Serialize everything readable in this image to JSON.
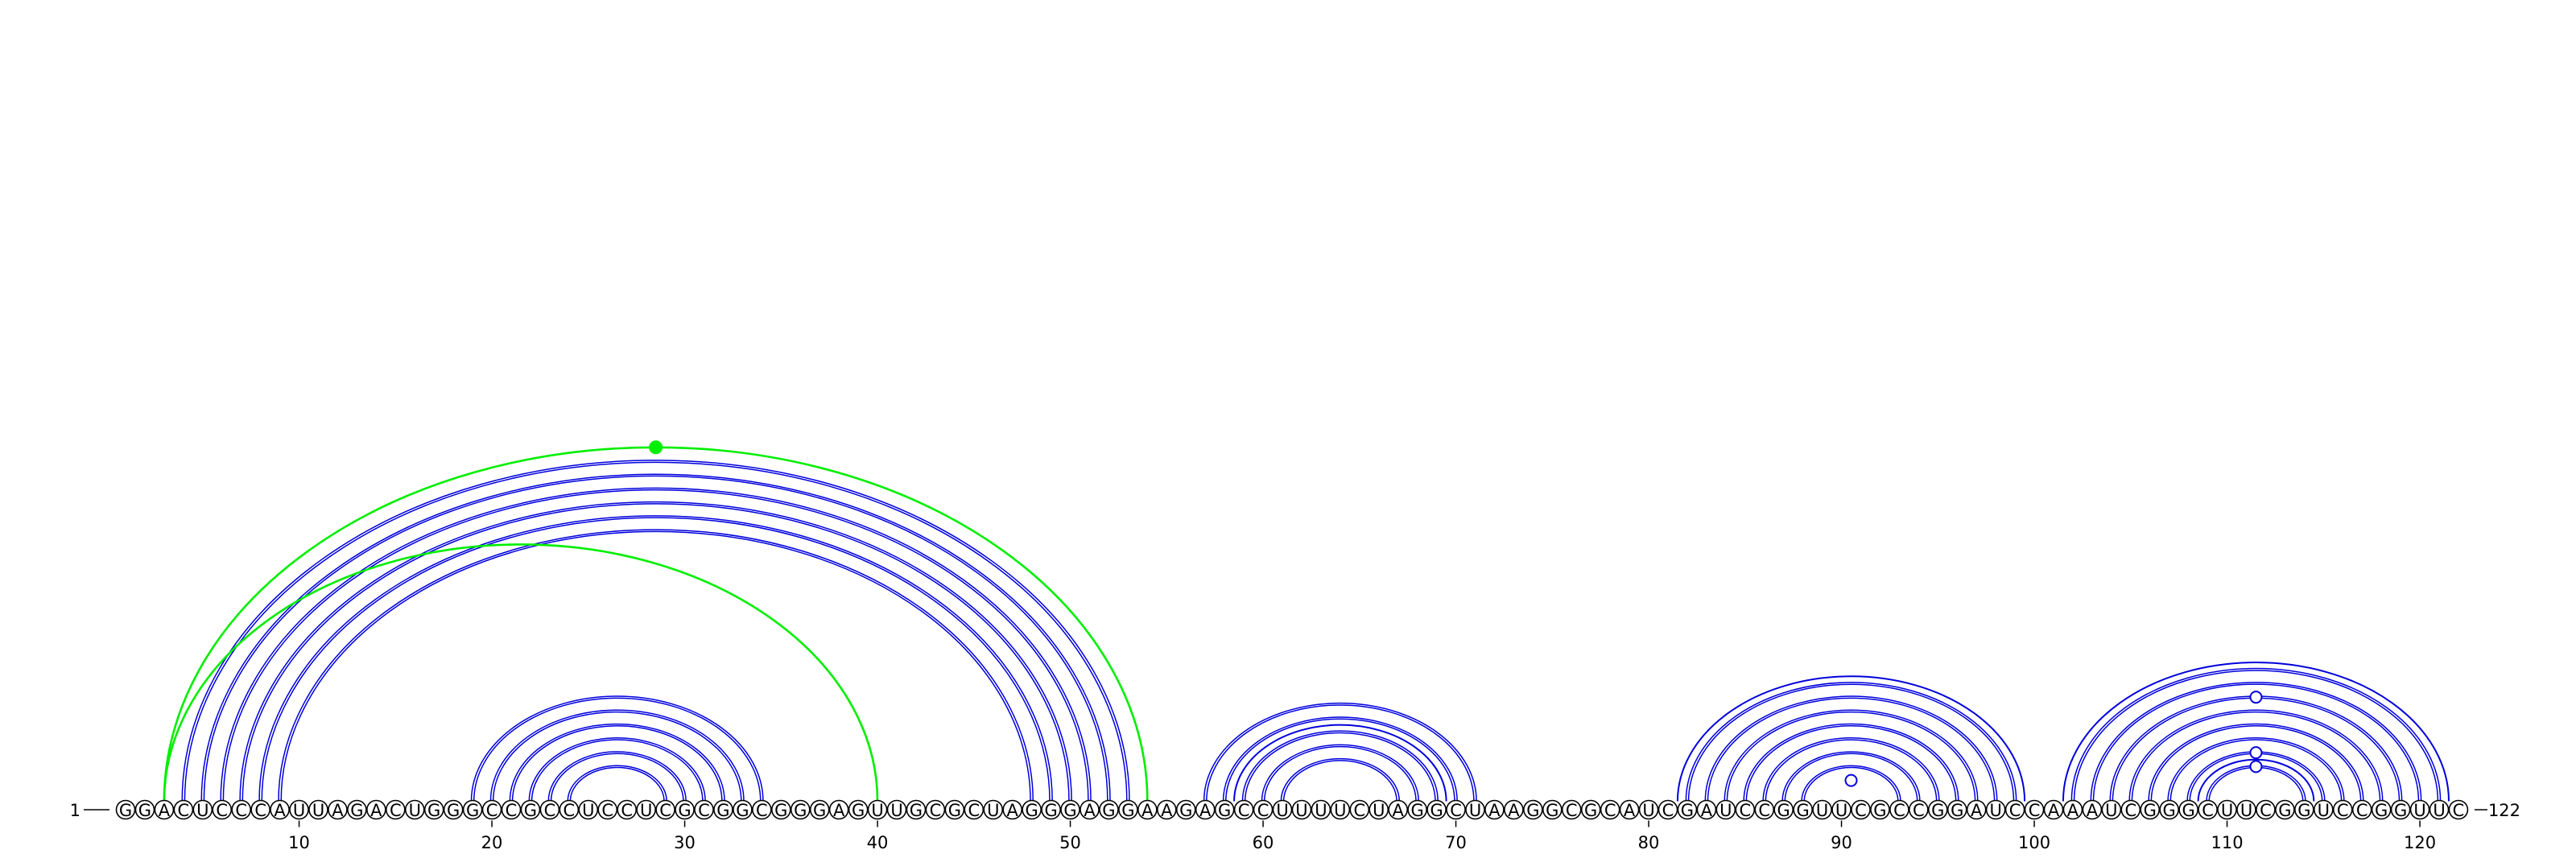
{
  "diagram": {
    "type": "rna-arc-diagram",
    "sequence": "GGACUCCCAUUAGACUGGGCCGCCUCCUCGCGGCGGGAGUUGCGCUAGGGAGGAAGAGCCUUUUCUAGGCUAAGGCGCAUCGAUCCGGUUCGCCGGAUCCAAAUCGGGCUUCGGUCCGGUUC",
    "start_label": "1",
    "end_label": "122",
    "tick_labels": [
      "10",
      "20",
      "30",
      "40",
      "50",
      "60",
      "70",
      "80",
      "90",
      "100",
      "110",
      "120"
    ],
    "colors": {
      "pair_arc": "#0000dd",
      "alt_arc": "#00ee00",
      "nucleotide_outline": "#000000",
      "marker_fill": "#ffffff"
    },
    "blue_double_pairs": [
      [
        4,
        53
      ],
      [
        5,
        52
      ],
      [
        6,
        51
      ],
      [
        7,
        50
      ],
      [
        8,
        49
      ],
      [
        9,
        48
      ],
      [
        19,
        34
      ],
      [
        20,
        33
      ],
      [
        21,
        32
      ],
      [
        22,
        31
      ],
      [
        23,
        30
      ],
      [
        24,
        29
      ],
      [
        57,
        71
      ],
      [
        58,
        70
      ],
      [
        59,
        69
      ],
      [
        60,
        68
      ],
      [
        61,
        67
      ],
      [
        82,
        99
      ],
      [
        83,
        98
      ],
      [
        84,
        97
      ],
      [
        85,
        96
      ],
      [
        86,
        95
      ],
      [
        87,
        94
      ],
      [
        88,
        93
      ],
      [
        102,
        121
      ],
      [
        103,
        120
      ],
      [
        104,
        119
      ],
      [
        105,
        118
      ],
      [
        106,
        117
      ],
      [
        107,
        116
      ],
      [
        108,
        115
      ],
      [
        109,
        114
      ]
    ],
    "blue_single_pairs": [
      [
        59,
        69
      ],
      [
        82,
        99
      ],
      [
        102,
        121
      ],
      [
        109,
        114
      ]
    ],
    "green_pairs": [
      [
        3,
        54
      ],
      [
        3,
        40
      ]
    ],
    "arc_markers": [
      {
        "pair": [
          3,
          54
        ],
        "color": "alt_arc",
        "style": "filled"
      },
      {
        "pair": [
          89,
          92
        ],
        "color": "pair_arc",
        "style": "open"
      },
      {
        "pair": [
          109,
          114
        ],
        "color": "pair_arc",
        "style": "open"
      },
      {
        "pair": [
          108,
          115
        ],
        "color": "pair_arc",
        "style": "open"
      },
      {
        "pair": [
          104,
          119
        ],
        "color": "pair_arc",
        "style": "open"
      }
    ]
  }
}
